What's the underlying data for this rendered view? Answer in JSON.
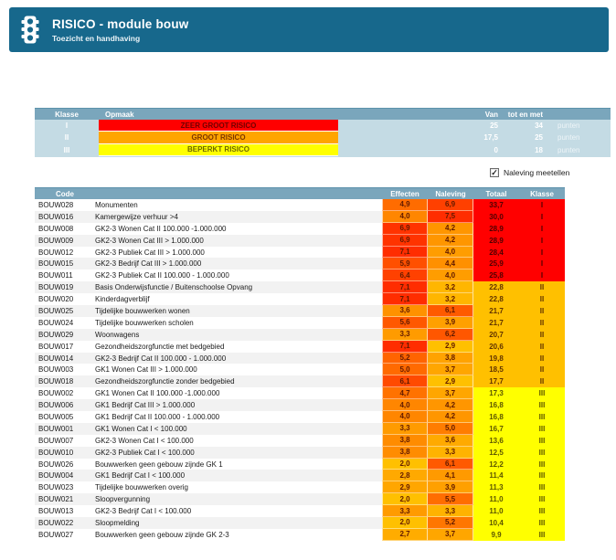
{
  "header": {
    "title": "RISICO - module bouw",
    "subtitle": "Toezicht en handhaving",
    "bg_color": "#17688C",
    "icon": "traffic-light-icon"
  },
  "legend_table": {
    "headers": {
      "klasse": "Klasse",
      "opmaak": "Opmaak",
      "van": "Van",
      "tot_en_met": "tot en met"
    },
    "unit_label": "punten",
    "header_bg": "#7AA6BC",
    "body_bg": "#C4DBE4",
    "rows": [
      {
        "klasse": "I",
        "label": "ZEER GROOT RISICO",
        "bg": "#FF0000",
        "text_color": "#700000",
        "van": "25",
        "tot_en_met": "34"
      },
      {
        "klasse": "II",
        "label": "GROOT RISICO",
        "bg": "#FFA500",
        "text_color": "#7A3600",
        "van": "17,5",
        "tot_en_met": "25"
      },
      {
        "klasse": "III",
        "label": "BEPERKT RISICO",
        "bg": "#FFFF00",
        "text_color": "#6E6600",
        "van": "0",
        "tot_en_met": "18"
      }
    ]
  },
  "naleving_checkbox": {
    "label": "Naleving meetellen",
    "checked": true,
    "check_glyph": "✓"
  },
  "risk_table": {
    "headers": {
      "code": "Code",
      "effecten": "Effecten",
      "naleving": "Naleving",
      "totaal": "Totaal",
      "klasse": "Klasse"
    },
    "color_scale": {
      "low": "#FFC000",
      "high": "#FF2D00",
      "text": "#611A00"
    },
    "class_styles": {
      "I": {
        "bg": "#FF0000",
        "text": "#4F0000"
      },
      "II": {
        "bg": "#FFC000",
        "text": "#5F3200"
      },
      "III": {
        "bg": "#FFFF00",
        "text": "#5C5600"
      }
    },
    "stripe_colors": [
      "#FFFFFF",
      "#F2F2F2"
    ],
    "rows": [
      {
        "code": "BOUW028",
        "name": "Monumenten",
        "effecten": "4,9",
        "naleving": "6,9",
        "totaal": "33,7",
        "klasse": "I"
      },
      {
        "code": "BOUW016",
        "name": "Kamergewijze verhuur >4",
        "effecten": "4,0",
        "naleving": "7,5",
        "totaal": "30,0",
        "klasse": "I"
      },
      {
        "code": "BOUW008",
        "name": "GK2-3 Wonen Cat II 100.000 -1.000.000",
        "effecten": "6,9",
        "naleving": "4,2",
        "totaal": "28,9",
        "klasse": "I"
      },
      {
        "code": "BOUW009",
        "name": "GK2-3 Wonen Cat III > 1.000.000",
        "effecten": "6,9",
        "naleving": "4,2",
        "totaal": "28,9",
        "klasse": "I"
      },
      {
        "code": "BOUW012",
        "name": "GK2-3 Publiek Cat III > 1.000.000",
        "effecten": "7,1",
        "naleving": "4,0",
        "totaal": "28,4",
        "klasse": "I"
      },
      {
        "code": "BOUW015",
        "name": "GK2-3 Bedrijf Cat III > 1.000.000",
        "effecten": "5,9",
        "naleving": "4,4",
        "totaal": "25,9",
        "klasse": "I"
      },
      {
        "code": "BOUW011",
        "name": "GK2-3 Publiek Cat II 100.000 - 1.000.000",
        "effecten": "6,4",
        "naleving": "4,0",
        "totaal": "25,8",
        "klasse": "I"
      },
      {
        "code": "BOUW019",
        "name": "Basis Onderwijsfunctie / Buitenschoolse Opvang",
        "effecten": "7,1",
        "naleving": "3,2",
        "totaal": "22,8",
        "klasse": "II"
      },
      {
        "code": "BOUW020",
        "name": "Kinderdagverblijf",
        "effecten": "7,1",
        "naleving": "3,2",
        "totaal": "22,8",
        "klasse": "II"
      },
      {
        "code": "BOUW025",
        "name": "Tijdelijke bouwwerken wonen",
        "effecten": "3,6",
        "naleving": "6,1",
        "totaal": "21,7",
        "klasse": "II"
      },
      {
        "code": "BOUW024",
        "name": "Tijdelijke bouwwerken scholen",
        "effecten": "5,6",
        "naleving": "3,9",
        "totaal": "21,7",
        "klasse": "II"
      },
      {
        "code": "BOUW029",
        "name": "Woonwagens",
        "effecten": "3,3",
        "naleving": "6,2",
        "totaal": "20,7",
        "klasse": "II"
      },
      {
        "code": "BOUW017",
        "name": "Gezondheidszorgfunctie met bedgebied",
        "effecten": "7,1",
        "naleving": "2,9",
        "totaal": "20,6",
        "klasse": "II"
      },
      {
        "code": "BOUW014",
        "name": "GK2-3 Bedrijf Cat II 100.000 - 1.000.000",
        "effecten": "5,2",
        "naleving": "3,8",
        "totaal": "19,8",
        "klasse": "II"
      },
      {
        "code": "BOUW003",
        "name": "GK1 Wonen Cat III > 1.000.000",
        "effecten": "5,0",
        "naleving": "3,7",
        "totaal": "18,5",
        "klasse": "II"
      },
      {
        "code": "BOUW018",
        "name": "Gezondheidszorgfunctie zonder bedgebied",
        "effecten": "6,1",
        "naleving": "2,9",
        "totaal": "17,7",
        "klasse": "II"
      },
      {
        "code": "BOUW002",
        "name": "GK1 Wonen Cat II 100.000 -1.000.000",
        "effecten": "4,7",
        "naleving": "3,7",
        "totaal": "17,3",
        "klasse": "III"
      },
      {
        "code": "BOUW006",
        "name": "GK1 Bedrijf Cat III > 1.000.000",
        "effecten": "4,0",
        "naleving": "4,2",
        "totaal": "16,8",
        "klasse": "III"
      },
      {
        "code": "BOUW005",
        "name": "GK1 Bedrijf Cat II 100.000 - 1.000.000",
        "effecten": "4,0",
        "naleving": "4,2",
        "totaal": "16,8",
        "klasse": "III"
      },
      {
        "code": "BOUW001",
        "name": "GK1 Wonen Cat I < 100.000",
        "effecten": "3,3",
        "naleving": "5,0",
        "totaal": "16,7",
        "klasse": "III"
      },
      {
        "code": "BOUW007",
        "name": "GK2-3 Wonen Cat I < 100.000",
        "effecten": "3,8",
        "naleving": "3,6",
        "totaal": "13,6",
        "klasse": "III"
      },
      {
        "code": "BOUW010",
        "name": "GK2-3 Publiek Cat I < 100.000",
        "effecten": "3,8",
        "naleving": "3,3",
        "totaal": "12,5",
        "klasse": "III"
      },
      {
        "code": "BOUW026",
        "name": "Bouwwerken geen gebouw zijnde GK 1",
        "effecten": "2,0",
        "naleving": "6,1",
        "totaal": "12,2",
        "klasse": "III"
      },
      {
        "code": "BOUW004",
        "name": "GK1 Bedrijf Cat I < 100.000",
        "effecten": "2,8",
        "naleving": "4,1",
        "totaal": "11,4",
        "klasse": "III"
      },
      {
        "code": "BOUW023",
        "name": "Tijdelijke bouwwerken overig",
        "effecten": "2,9",
        "naleving": "3,9",
        "totaal": "11,3",
        "klasse": "III"
      },
      {
        "code": "BOUW021",
        "name": "Sloopvergunning",
        "effecten": "2,0",
        "naleving": "5,5",
        "totaal": "11,0",
        "klasse": "III"
      },
      {
        "code": "BOUW013",
        "name": "GK2-3 Bedrijf Cat I < 100.000",
        "effecten": "3,3",
        "naleving": "3,3",
        "totaal": "11,0",
        "klasse": "III"
      },
      {
        "code": "BOUW022",
        "name": "Sloopmelding",
        "effecten": "2,0",
        "naleving": "5,2",
        "totaal": "10,4",
        "klasse": "III"
      },
      {
        "code": "BOUW027",
        "name": "Bouwwerken geen gebouw zijnde GK 2-3",
        "effecten": "2,7",
        "naleving": "3,7",
        "totaal": "9,9",
        "klasse": "III"
      }
    ]
  }
}
